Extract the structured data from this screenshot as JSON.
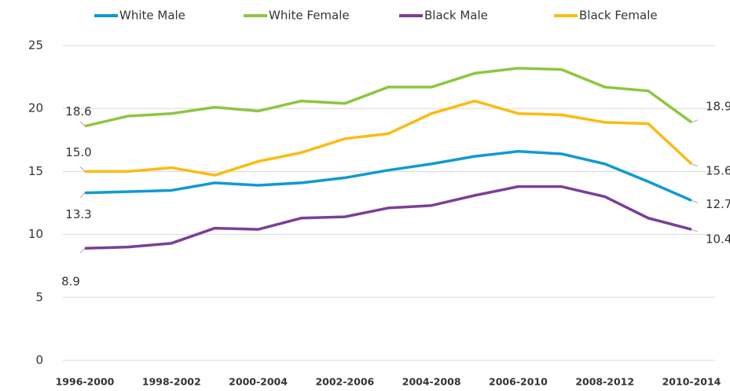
{
  "chart_data": {
    "type": "line",
    "categories": [
      "1996-2000",
      null,
      "1998-2002",
      null,
      "2000-2004",
      null,
      "2002-2006",
      null,
      "2004-2008",
      null,
      "2006-2010",
      null,
      "2008-2012",
      null,
      "2010-2014"
    ],
    "series": [
      {
        "name": "White Male",
        "color": "#0f9ad3",
        "values": [
          13.3,
          13.4,
          13.5,
          14.1,
          13.9,
          14.1,
          14.5,
          15.1,
          15.6,
          16.2,
          16.6,
          16.4,
          15.6,
          14.2,
          12.7
        ],
        "value_labels": [
          "13.3",
          null,
          null,
          null,
          null,
          null,
          null,
          null,
          null,
          null,
          null,
          null,
          null,
          null,
          "12.7"
        ]
      },
      {
        "name": "White Female",
        "color": "#8dc63f",
        "values": [
          18.6,
          19.4,
          19.6,
          20.1,
          19.8,
          20.6,
          20.4,
          21.7,
          21.7,
          22.8,
          23.2,
          23.1,
          21.7,
          21.4,
          18.9
        ],
        "value_labels": [
          "18.6",
          null,
          null,
          null,
          null,
          null,
          null,
          null,
          null,
          null,
          null,
          null,
          null,
          null,
          "18.9"
        ]
      },
      {
        "name": "Black Male",
        "color": "#7b3f98",
        "values": [
          8.9,
          9.0,
          9.3,
          10.5,
          10.4,
          11.3,
          11.4,
          12.1,
          12.3,
          13.1,
          13.8,
          13.8,
          13.0,
          11.3,
          10.4
        ],
        "value_labels": [
          "8.9",
          null,
          null,
          null,
          null,
          null,
          null,
          null,
          null,
          null,
          null,
          null,
          null,
          null,
          "10.4"
        ]
      },
      {
        "name": "Black Female",
        "color": "#fbbb10",
        "values": [
          15.0,
          15.0,
          15.3,
          14.7,
          15.8,
          16.5,
          17.6,
          18.0,
          19.6,
          20.6,
          19.6,
          19.5,
          18.9,
          18.8,
          15.6
        ],
        "value_labels": [
          "15.0",
          null,
          null,
          null,
          null,
          null,
          null,
          null,
          null,
          null,
          null,
          null,
          null,
          null,
          "15.6"
        ]
      }
    ],
    "ylim": [
      0,
      25
    ],
    "yticks": [
      0,
      5,
      10,
      15,
      20,
      25
    ],
    "grid": true,
    "legend": "top"
  }
}
